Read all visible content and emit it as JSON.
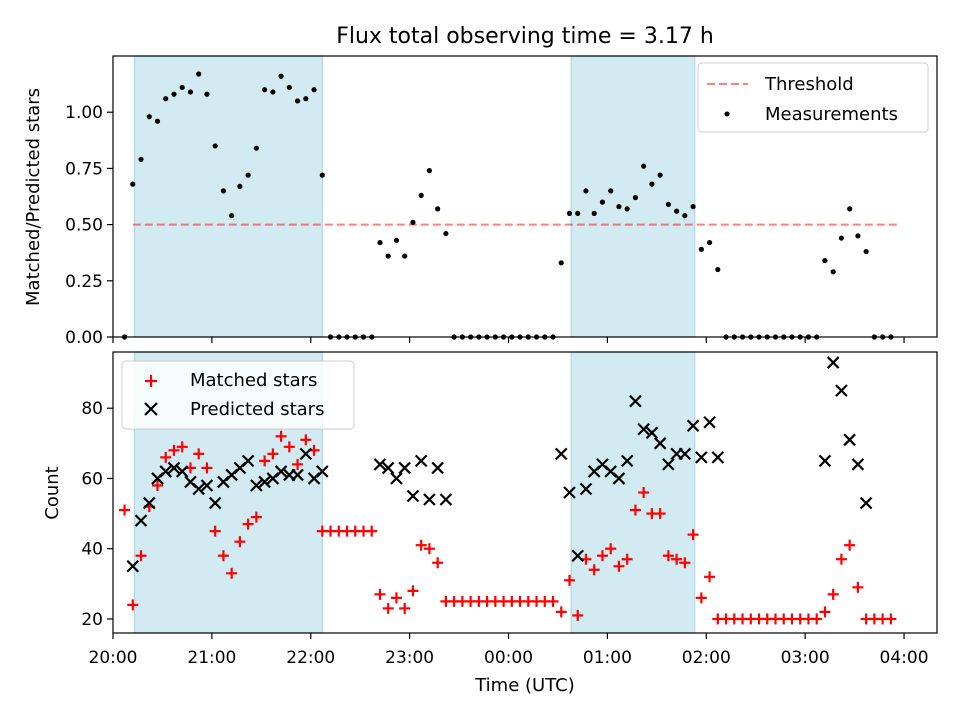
{
  "title": "Flux total observing time = 3.17 h",
  "colors": {
    "shade": "#add8e6",
    "threshold": "#ff0000",
    "measurement": "#000000",
    "matched": "#ff0000",
    "predicted": "#000000"
  },
  "chart_data": [
    {
      "type": "scatter",
      "panel": "top",
      "ylabel": "Matched/Predicted stars",
      "xlim": [
        "20:00",
        "04:20"
      ],
      "ylim": [
        0,
        1.25
      ],
      "yticks": [
        0.0,
        0.25,
        0.5,
        0.75,
        1.0
      ],
      "ytick_labels": [
        "0.00",
        "0.25",
        "0.50",
        "0.75",
        "1.00"
      ],
      "shaded_intervals": [
        [
          "20:13",
          "22:07"
        ],
        [
          "00:38",
          "01:53"
        ]
      ],
      "legend": {
        "location": "top-right",
        "entries": [
          "Threshold",
          "Measurements"
        ]
      },
      "threshold": {
        "name": "Threshold",
        "value": 0.5,
        "x_range": [
          "20:12",
          "03:58"
        ]
      },
      "series": [
        {
          "name": "Measurements",
          "marker": "dot",
          "points": [
            [
              "20:07",
              0.0
            ],
            [
              "20:12",
              0.68
            ],
            [
              "20:17",
              0.79
            ],
            [
              "20:22",
              0.98
            ],
            [
              "20:27",
              0.96
            ],
            [
              "20:32",
              1.06
            ],
            [
              "20:37",
              1.08
            ],
            [
              "20:42",
              1.11
            ],
            [
              "20:47",
              1.09
            ],
            [
              "20:52",
              1.17
            ],
            [
              "20:57",
              1.08
            ],
            [
              "21:02",
              0.85
            ],
            [
              "21:07",
              0.65
            ],
            [
              "21:12",
              0.54
            ],
            [
              "21:17",
              0.67
            ],
            [
              "21:22",
              0.72
            ],
            [
              "21:27",
              0.84
            ],
            [
              "21:32",
              1.1
            ],
            [
              "21:37",
              1.09
            ],
            [
              "21:42",
              1.16
            ],
            [
              "21:47",
              1.11
            ],
            [
              "21:52",
              1.05
            ],
            [
              "21:57",
              1.06
            ],
            [
              "22:02",
              1.1
            ],
            [
              "22:07",
              0.72
            ],
            [
              "22:12",
              0.0
            ],
            [
              "22:17",
              0.0
            ],
            [
              "22:22",
              0.0
            ],
            [
              "22:27",
              0.0
            ],
            [
              "22:32",
              0.0
            ],
            [
              "22:37",
              0.0
            ],
            [
              "22:42",
              0.42
            ],
            [
              "22:47",
              0.36
            ],
            [
              "22:52",
              0.43
            ],
            [
              "22:57",
              0.36
            ],
            [
              "23:02",
              0.51
            ],
            [
              "23:07",
              0.63
            ],
            [
              "23:12",
              0.74
            ],
            [
              "23:17",
              0.57
            ],
            [
              "23:22",
              0.46
            ],
            [
              "23:27",
              0.0
            ],
            [
              "23:32",
              0.0
            ],
            [
              "23:37",
              0.0
            ],
            [
              "23:42",
              0.0
            ],
            [
              "23:47",
              0.0
            ],
            [
              "23:52",
              0.0
            ],
            [
              "23:57",
              0.0
            ],
            [
              "00:02",
              0.0
            ],
            [
              "00:07",
              0.0
            ],
            [
              "00:12",
              0.0
            ],
            [
              "00:17",
              0.0
            ],
            [
              "00:22",
              0.0
            ],
            [
              "00:27",
              0.0
            ],
            [
              "00:32",
              0.33
            ],
            [
              "00:37",
              0.55
            ],
            [
              "00:42",
              0.55
            ],
            [
              "00:47",
              0.65
            ],
            [
              "00:52",
              0.55
            ],
            [
              "00:57",
              0.6
            ],
            [
              "01:02",
              0.65
            ],
            [
              "01:07",
              0.58
            ],
            [
              "01:12",
              0.57
            ],
            [
              "01:17",
              0.62
            ],
            [
              "01:22",
              0.76
            ],
            [
              "01:27",
              0.68
            ],
            [
              "01:32",
              0.72
            ],
            [
              "01:37",
              0.59
            ],
            [
              "01:42",
              0.56
            ],
            [
              "01:47",
              0.54
            ],
            [
              "01:52",
              0.58
            ],
            [
              "01:57",
              0.39
            ],
            [
              "02:02",
              0.42
            ],
            [
              "02:07",
              0.3
            ],
            [
              "02:12",
              0.0
            ],
            [
              "02:17",
              0.0
            ],
            [
              "02:22",
              0.0
            ],
            [
              "02:27",
              0.0
            ],
            [
              "02:32",
              0.0
            ],
            [
              "02:37",
              0.0
            ],
            [
              "02:42",
              0.0
            ],
            [
              "02:47",
              0.0
            ],
            [
              "02:52",
              0.0
            ],
            [
              "02:57",
              0.0
            ],
            [
              "03:02",
              0.0
            ],
            [
              "03:07",
              0.0
            ],
            [
              "03:12",
              0.34
            ],
            [
              "03:17",
              0.29
            ],
            [
              "03:22",
              0.44
            ],
            [
              "03:27",
              0.57
            ],
            [
              "03:32",
              0.45
            ],
            [
              "03:37",
              0.38
            ],
            [
              "03:42",
              0.0
            ],
            [
              "03:47",
              0.0
            ],
            [
              "03:52",
              0.0
            ]
          ]
        }
      ]
    },
    {
      "type": "scatter",
      "panel": "bottom",
      "xlabel": "Time (UTC)",
      "ylabel": "Count",
      "xlim": [
        "20:00",
        "04:20"
      ],
      "ylim": [
        16,
        96
      ],
      "yticks": [
        20,
        40,
        60,
        80
      ],
      "xticks": [
        "20:00",
        "21:00",
        "22:00",
        "23:00",
        "00:00",
        "01:00",
        "02:00",
        "03:00",
        "04:00"
      ],
      "shaded_intervals": [
        [
          "20:13",
          "22:07"
        ],
        [
          "00:38",
          "01:53"
        ]
      ],
      "legend": {
        "location": "top-left",
        "entries": [
          "Matched stars",
          "Predicted stars"
        ]
      },
      "series": [
        {
          "name": "Matched stars",
          "marker": "plus",
          "points": [
            [
              "20:07",
              51
            ],
            [
              "20:12",
              24
            ],
            [
              "20:17",
              38
            ],
            [
              "20:22",
              52
            ],
            [
              "20:27",
              58
            ],
            [
              "20:32",
              66
            ],
            [
              "20:37",
              68
            ],
            [
              "20:42",
              69
            ],
            [
              "20:47",
              63
            ],
            [
              "20:52",
              67
            ],
            [
              "20:57",
              63
            ],
            [
              "21:02",
              45
            ],
            [
              "21:07",
              38
            ],
            [
              "21:12",
              33
            ],
            [
              "21:17",
              42
            ],
            [
              "21:22",
              47
            ],
            [
              "21:27",
              49
            ],
            [
              "21:32",
              65
            ],
            [
              "21:37",
              67
            ],
            [
              "21:42",
              72
            ],
            [
              "21:47",
              69
            ],
            [
              "21:52",
              64
            ],
            [
              "21:57",
              71
            ],
            [
              "22:02",
              68
            ],
            [
              "22:07",
              45
            ],
            [
              "22:12",
              45
            ],
            [
              "22:17",
              45
            ],
            [
              "22:22",
              45
            ],
            [
              "22:27",
              45
            ],
            [
              "22:32",
              45
            ],
            [
              "22:37",
              45
            ],
            [
              "22:42",
              27
            ],
            [
              "22:47",
              23
            ],
            [
              "22:52",
              26
            ],
            [
              "22:57",
              23
            ],
            [
              "23:02",
              28
            ],
            [
              "23:07",
              41
            ],
            [
              "23:12",
              40
            ],
            [
              "23:17",
              36
            ],
            [
              "23:22",
              25
            ],
            [
              "23:27",
              25
            ],
            [
              "23:32",
              25
            ],
            [
              "23:37",
              25
            ],
            [
              "23:42",
              25
            ],
            [
              "23:47",
              25
            ],
            [
              "23:52",
              25
            ],
            [
              "23:57",
              25
            ],
            [
              "00:02",
              25
            ],
            [
              "00:07",
              25
            ],
            [
              "00:12",
              25
            ],
            [
              "00:17",
              25
            ],
            [
              "00:22",
              25
            ],
            [
              "00:27",
              25
            ],
            [
              "00:32",
              22
            ],
            [
              "00:37",
              31
            ],
            [
              "00:42",
              21
            ],
            [
              "00:47",
              37
            ],
            [
              "00:52",
              34
            ],
            [
              "00:57",
              38
            ],
            [
              "01:02",
              40
            ],
            [
              "01:07",
              35
            ],
            [
              "01:12",
              37
            ],
            [
              "01:17",
              51
            ],
            [
              "01:22",
              56
            ],
            [
              "01:27",
              50
            ],
            [
              "01:32",
              50
            ],
            [
              "01:37",
              38
            ],
            [
              "01:42",
              37
            ],
            [
              "01:47",
              36
            ],
            [
              "01:52",
              44
            ],
            [
              "01:57",
              26
            ],
            [
              "02:02",
              32
            ],
            [
              "02:07",
              20
            ],
            [
              "02:12",
              20
            ],
            [
              "02:17",
              20
            ],
            [
              "02:22",
              20
            ],
            [
              "02:27",
              20
            ],
            [
              "02:32",
              20
            ],
            [
              "02:37",
              20
            ],
            [
              "02:42",
              20
            ],
            [
              "02:47",
              20
            ],
            [
              "02:52",
              20
            ],
            [
              "02:57",
              20
            ],
            [
              "03:02",
              20
            ],
            [
              "03:07",
              20
            ],
            [
              "03:12",
              22
            ],
            [
              "03:17",
              27
            ],
            [
              "03:22",
              37
            ],
            [
              "03:27",
              41
            ],
            [
              "03:32",
              29
            ],
            [
              "03:37",
              20
            ],
            [
              "03:42",
              20
            ],
            [
              "03:47",
              20
            ],
            [
              "03:52",
              20
            ]
          ]
        },
        {
          "name": "Predicted stars",
          "marker": "x",
          "points": [
            [
              "20:12",
              35
            ],
            [
              "20:17",
              48
            ],
            [
              "20:22",
              53
            ],
            [
              "20:27",
              60
            ],
            [
              "20:32",
              62
            ],
            [
              "20:37",
              63
            ],
            [
              "20:42",
              62
            ],
            [
              "20:47",
              59
            ],
            [
              "20:52",
              57
            ],
            [
              "20:57",
              58
            ],
            [
              "21:02",
              53
            ],
            [
              "21:07",
              59
            ],
            [
              "21:12",
              61
            ],
            [
              "21:17",
              63
            ],
            [
              "21:22",
              65
            ],
            [
              "21:27",
              58
            ],
            [
              "21:32",
              59
            ],
            [
              "21:37",
              60
            ],
            [
              "21:42",
              62
            ],
            [
              "21:47",
              61
            ],
            [
              "21:52",
              61
            ],
            [
              "21:57",
              67
            ],
            [
              "22:02",
              60
            ],
            [
              "22:07",
              62
            ],
            [
              "22:42",
              64
            ],
            [
              "22:47",
              63
            ],
            [
              "22:52",
              60
            ],
            [
              "22:57",
              63
            ],
            [
              "23:02",
              55
            ],
            [
              "23:07",
              65
            ],
            [
              "23:12",
              54
            ],
            [
              "23:17",
              63
            ],
            [
              "23:22",
              54
            ],
            [
              "00:32",
              67
            ],
            [
              "00:37",
              56
            ],
            [
              "00:42",
              38
            ],
            [
              "00:47",
              57
            ],
            [
              "00:52",
              62
            ],
            [
              "00:57",
              64
            ],
            [
              "01:02",
              62
            ],
            [
              "01:07",
              60
            ],
            [
              "01:12",
              65
            ],
            [
              "01:17",
              82
            ],
            [
              "01:22",
              74
            ],
            [
              "01:27",
              73
            ],
            [
              "01:32",
              70
            ],
            [
              "01:37",
              64
            ],
            [
              "01:42",
              67
            ],
            [
              "01:47",
              67
            ],
            [
              "01:52",
              75
            ],
            [
              "01:57",
              66
            ],
            [
              "02:02",
              76
            ],
            [
              "02:07",
              66
            ],
            [
              "03:12",
              65
            ],
            [
              "03:17",
              93
            ],
            [
              "03:22",
              85
            ],
            [
              "03:27",
              71
            ],
            [
              "03:32",
              64
            ],
            [
              "03:37",
              53
            ]
          ]
        }
      ]
    }
  ]
}
